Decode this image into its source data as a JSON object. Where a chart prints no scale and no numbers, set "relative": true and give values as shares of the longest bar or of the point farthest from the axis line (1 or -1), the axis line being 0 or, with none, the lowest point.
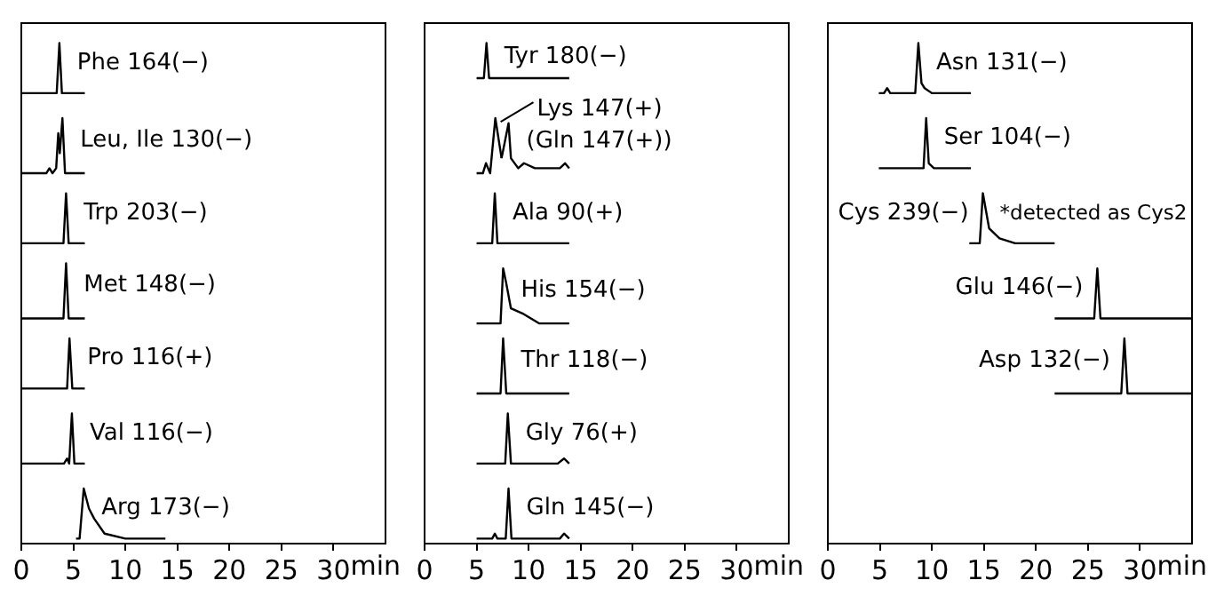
{
  "chart_data": [
    {
      "type": "line",
      "relative": true,
      "xlabel": "min",
      "xlim": [
        0,
        35
      ],
      "xticks": [
        0,
        5,
        10,
        15,
        20,
        25,
        30
      ],
      "series": [
        {
          "name": "Phe 164(−)",
          "color": "#000000",
          "x": [
            0,
            3.4,
            3.66,
            3.9,
            6.1
          ],
          "values": [
            0.9,
            0.9,
            1,
            0.9,
            0.9
          ]
        },
        {
          "name": "Leu, Ile 130(−)",
          "color": "#000000",
          "x": [
            0,
            2.4,
            2.7,
            3.0,
            3.35,
            3.55,
            3.7,
            3.95,
            4.2,
            6.1
          ],
          "values": [
            0.74,
            0.74,
            0.75,
            0.74,
            0.75,
            0.82,
            0.78,
            0.85,
            0.74,
            0.74
          ]
        },
        {
          "name": "Trp 203(−)",
          "color": "#000000",
          "x": [
            0,
            4.05,
            4.3,
            4.55,
            6.1
          ],
          "values": [
            0.6,
            0.6,
            0.7,
            0.6,
            0.6
          ]
        },
        {
          "name": "Met 148(−)",
          "color": "#000000",
          "x": [
            0,
            4.05,
            4.3,
            4.55,
            6.1
          ],
          "values": [
            0.45,
            0.45,
            0.56,
            0.45,
            0.45
          ]
        },
        {
          "name": "Pro 116(+)",
          "color": "#000000",
          "x": [
            0,
            4.4,
            4.63,
            4.9,
            6.1
          ],
          "values": [
            0.31,
            0.31,
            0.41,
            0.31,
            0.31
          ]
        },
        {
          "name": "Val 116(−)",
          "color": "#000000",
          "x": [
            0,
            4.1,
            4.4,
            4.6,
            4.86,
            5.1,
            6.1
          ],
          "values": [
            0.16,
            0.16,
            0.17,
            0.16,
            0.26,
            0.16,
            0.16
          ]
        },
        {
          "name": "Arg 173(−)",
          "color": "#000000",
          "x": [
            5.26,
            5.6,
            6.0,
            6.5,
            7.0,
            8.0,
            10.0,
            13.85
          ],
          "values": [
            0.01,
            0.01,
            0.11,
            0.07,
            0.05,
            0.02,
            0.01,
            0.01
          ]
        }
      ]
    },
    {
      "type": "line",
      "relative": true,
      "xlabel": "min",
      "xlim": [
        0,
        35
      ],
      "xticks": [
        0,
        5,
        10,
        15,
        20,
        25,
        30
      ],
      "series": [
        {
          "name": "Tyr 180(−)",
          "color": "#000000",
          "x": [
            5.0,
            5.7,
            5.95,
            6.2,
            13.9
          ],
          "values": [
            0.93,
            0.93,
            1,
            0.93,
            0.93
          ]
        },
        {
          "name": "Lys 147(+)",
          "color": "#000000",
          "x": [
            5.0,
            5.6,
            5.9,
            6.3,
            6.8,
            7.4
          ],
          "values": [
            0.74,
            0.74,
            0.76,
            0.74,
            0.85,
            0.77
          ]
        },
        {
          "name": "(Gln 147(+))",
          "color": "#000000",
          "x": [
            7.4,
            8.07,
            8.3,
            9.0,
            9.55,
            10.6,
            13.0,
            13.5,
            13.9
          ],
          "values": [
            0.77,
            0.84,
            0.77,
            0.75,
            0.76,
            0.75,
            0.75,
            0.76,
            0.75
          ]
        },
        {
          "name": "Ala 90(+)",
          "color": "#000000",
          "x": [
            5.0,
            6.5,
            6.75,
            7.0,
            13.9
          ],
          "values": [
            0.6,
            0.6,
            0.7,
            0.6,
            0.6
          ]
        },
        {
          "name": "His 154(−)",
          "color": "#000000",
          "x": [
            5.0,
            7.3,
            7.55,
            7.85,
            8.3,
            9.4,
            11.0,
            13.9
          ],
          "values": [
            0.44,
            0.44,
            0.55,
            0.52,
            0.47,
            0.46,
            0.44,
            0.44
          ]
        },
        {
          "name": "Thr 118(−)",
          "color": "#000000",
          "x": [
            5.0,
            7.3,
            7.55,
            7.85,
            13.9
          ],
          "values": [
            0.3,
            0.3,
            0.41,
            0.3,
            0.3
          ]
        },
        {
          "name": "Gly 76(+)",
          "color": "#000000",
          "x": [
            5.0,
            7.75,
            8.0,
            8.3,
            12.8,
            13.4,
            13.9
          ],
          "values": [
            0.16,
            0.16,
            0.26,
            0.16,
            0.16,
            0.17,
            0.16
          ]
        },
        {
          "name": "Gln 145(−)",
          "color": "#000000",
          "x": [
            5.0,
            6.5,
            6.75,
            7.0,
            7.8,
            8.07,
            8.35,
            13.0,
            13.4,
            13.9
          ],
          "values": [
            0.01,
            0.01,
            0.02,
            0.01,
            0.01,
            0.11,
            0.01,
            0.01,
            0.02,
            0.01
          ]
        }
      ]
    },
    {
      "type": "line",
      "relative": true,
      "xlabel": "min",
      "xlim": [
        0,
        35
      ],
      "xticks": [
        0,
        5,
        10,
        15,
        20,
        25,
        30
      ],
      "series": [
        {
          "name": "Asn 131(−)",
          "color": "#000000",
          "x": [
            4.9,
            5.4,
            5.7,
            6.0,
            8.4,
            8.7,
            9.0,
            9.3,
            10.0,
            13.75
          ],
          "values": [
            0.9,
            0.9,
            0.91,
            0.9,
            0.9,
            1,
            0.92,
            0.91,
            0.9,
            0.9
          ]
        },
        {
          "name": "Ser 104(−)",
          "color": "#000000",
          "x": [
            4.9,
            9.2,
            9.45,
            9.7,
            10.2,
            13.75
          ],
          "values": [
            0.75,
            0.75,
            0.85,
            0.76,
            0.75,
            0.75
          ]
        },
        {
          "name": "Cys 239(−)",
          "color": "#000000",
          "x": [
            13.6,
            14.6,
            14.9,
            15.5,
            16.5,
            18.0,
            21.8
          ],
          "values": [
            0.6,
            0.6,
            0.7,
            0.63,
            0.61,
            0.6,
            0.6
          ]
        },
        {
          "name": "Glu 146(−)",
          "color": "#000000",
          "x": [
            21.8,
            25.6,
            25.9,
            26.2,
            35
          ],
          "values": [
            0.45,
            0.45,
            0.55,
            0.45,
            0.45
          ]
        },
        {
          "name": "Asp 132(−)",
          "color": "#000000",
          "x": [
            21.8,
            28.2,
            28.5,
            28.8,
            35
          ],
          "values": [
            0.3,
            0.3,
            0.41,
            0.3,
            0.3
          ]
        }
      ],
      "annotations": [
        {
          "text": "*detected as Cys2",
          "x": 15.5,
          "y": 0.63
        }
      ]
    }
  ]
}
